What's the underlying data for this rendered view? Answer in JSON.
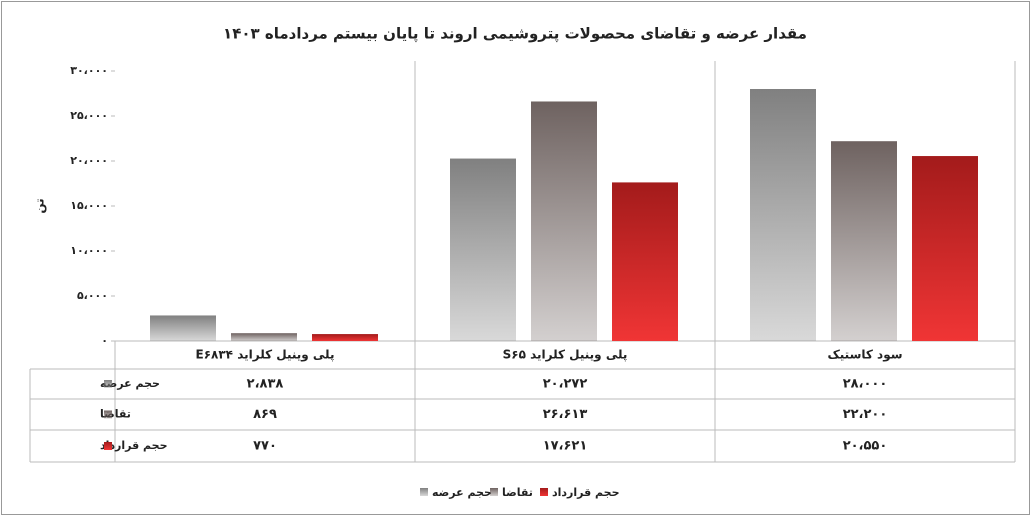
{
  "chart_data": {
    "type": "bar",
    "title": "مقدار عرضه و تقاضای محصولات پتروشیمی اروند تا پایان بیستم مردادماه ۱۴۰۳",
    "y_label": "تن",
    "categories": [
      "پلی وینیل کلراید E۶۸۳۴",
      "پلی وینیل کلراید S۶۵",
      "سود کاستیک"
    ],
    "series": [
      {
        "name": "حجم عرضه",
        "color": "#808080",
        "values": [
          2838,
          20272,
          28000
        ],
        "value_labels": [
          "۲،۸۳۸",
          "۲۰،۲۷۲",
          "۲۸،۰۰۰"
        ]
      },
      {
        "name": "تقاضا",
        "color": "#6e6260",
        "values": [
          869,
          26613,
          22200
        ],
        "value_labels": [
          "۸۶۹",
          "۲۶،۶۱۳",
          "۲۲،۲۰۰"
        ]
      },
      {
        "name": "حجم قرارداد",
        "color": "#a31b1b",
        "values": [
          770,
          17621,
          20550
        ],
        "value_labels": [
          "۷۷۰",
          "۱۷،۶۲۱",
          "۲۰،۵۵۰"
        ]
      }
    ],
    "ylim": [
      0,
      30000
    ],
    "yticks": [
      {
        "value": 0,
        "label": "۰"
      },
      {
        "value": 5000,
        "label": "۵،۰۰۰"
      },
      {
        "value": 10000,
        "label": "۱۰،۰۰۰"
      },
      {
        "value": 15000,
        "label": "۱۵،۰۰۰"
      },
      {
        "value": 20000,
        "label": "۲۰،۰۰۰"
      },
      {
        "value": 25000,
        "label": "۲۵،۰۰۰"
      },
      {
        "value": 30000,
        "label": "۳۰،۰۰۰"
      }
    ],
    "grid": false
  }
}
